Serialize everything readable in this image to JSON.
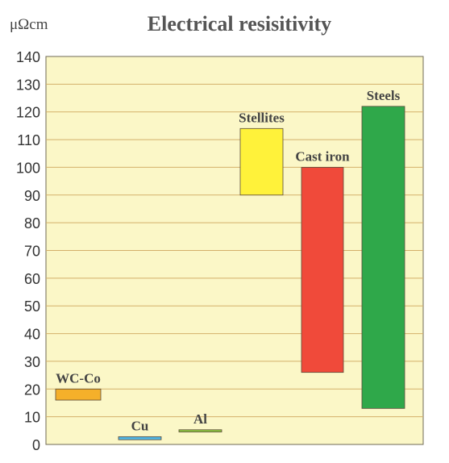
{
  "chart_data": {
    "type": "bar",
    "title": "Electrical resisitivity",
    "ylabel": "μΩcm",
    "xlabel": "",
    "ylim": [
      0,
      140
    ],
    "yticks": [
      0,
      10,
      20,
      30,
      40,
      50,
      60,
      70,
      80,
      90,
      100,
      110,
      120,
      130,
      140
    ],
    "grid": true,
    "plot_background": "#fbf7c7",
    "grid_color": "#d4b06a",
    "bars": [
      {
        "label": "WC-Co",
        "low": 16,
        "high": 20,
        "color": "#f5b02a"
      },
      {
        "label": "Cu",
        "low": 1.7,
        "high": 2.8,
        "color": "#4fb6e6"
      },
      {
        "label": "Al",
        "low": 4.5,
        "high": 5.3,
        "color": "#8cc63f"
      },
      {
        "label": "Stellites",
        "low": 90,
        "high": 114,
        "color": "#fff23a"
      },
      {
        "label": "Cast iron",
        "low": 26,
        "high": 100,
        "color": "#f04a3a"
      },
      {
        "label": "Steels",
        "low": 13,
        "high": 122,
        "color": "#2fa84a"
      }
    ]
  }
}
